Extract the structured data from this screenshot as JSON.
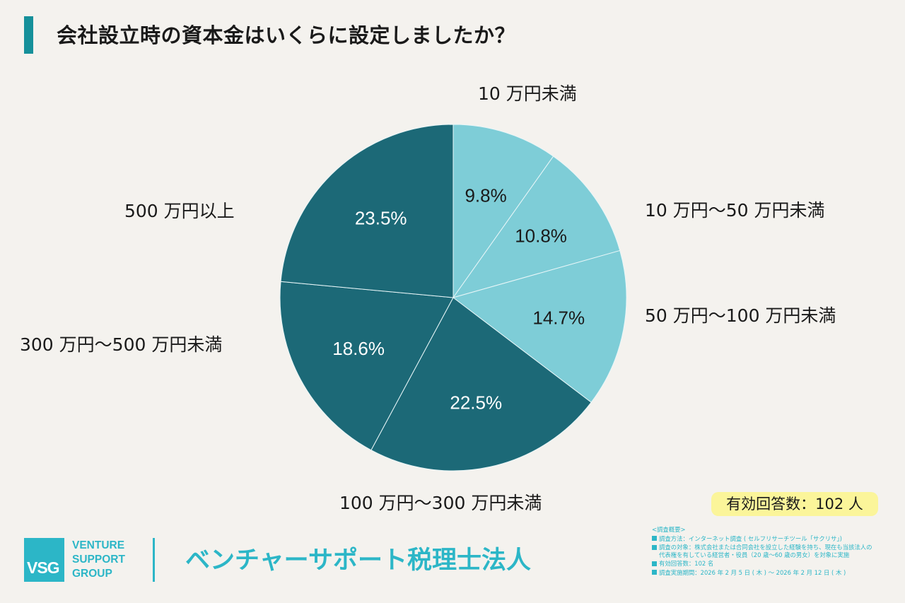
{
  "title": "会社設立時の資本金はいくらに設定しましたか？",
  "colors": {
    "title_accent": "#15909a",
    "light_slice": "#7ecdd7",
    "dark_slice": "#1c6977",
    "brand": "#2cb6c7",
    "badge_bg": "#fbf59a",
    "background": "#f4f2ee"
  },
  "chart_data": {
    "type": "pie",
    "title": "会社設立時の資本金はいくらに設定しましたか？",
    "start": "12 o'clock",
    "direction": "clockwise",
    "unit": "%",
    "slices": [
      {
        "label": "10 万円未満",
        "value": 9.8,
        "value_label": "9.8%",
        "tone": "light"
      },
      {
        "label": "10 万円〜50 万円未満",
        "value": 10.8,
        "value_label": "10.8%",
        "tone": "light"
      },
      {
        "label": "50 万円〜100 万円未満",
        "value": 14.7,
        "value_label": "14.7%",
        "tone": "light"
      },
      {
        "label": "100 万円〜300 万円未満",
        "value": 22.5,
        "value_label": "22.5%",
        "tone": "dark"
      },
      {
        "label": "300 万円〜500 万円未満",
        "value": 18.6,
        "value_label": "18.6%",
        "tone": "dark"
      },
      {
        "label": "500 万円以上",
        "value": 23.5,
        "value_label": "23.5%",
        "tone": "dark"
      }
    ]
  },
  "respondents_badge": "有効回答数：102 人",
  "logo": {
    "mark": "VSG",
    "lines": [
      "VENTURE",
      "SUPPORT",
      "GROUP"
    ]
  },
  "company_name": "ベンチャーサポート税理士法人",
  "survey": {
    "heading": "<調査概要>",
    "items": [
      "調査方法：インターネット調査 ( セルフリサーチツール「サクリサ」)",
      "調査の対象：株式会社または合同会社を設立した経験を持ち、現在も当該法人の",
      "有効回答数：102 名",
      "調査実施期間：2026 年 2 月 5 日 ( 木 ) 〜 2026 年 2 月 12 日 ( 木 )"
    ],
    "item2_cont": "代表権を有している経営者・役員（20 歳〜60 歳の男女）を対象に実施"
  }
}
